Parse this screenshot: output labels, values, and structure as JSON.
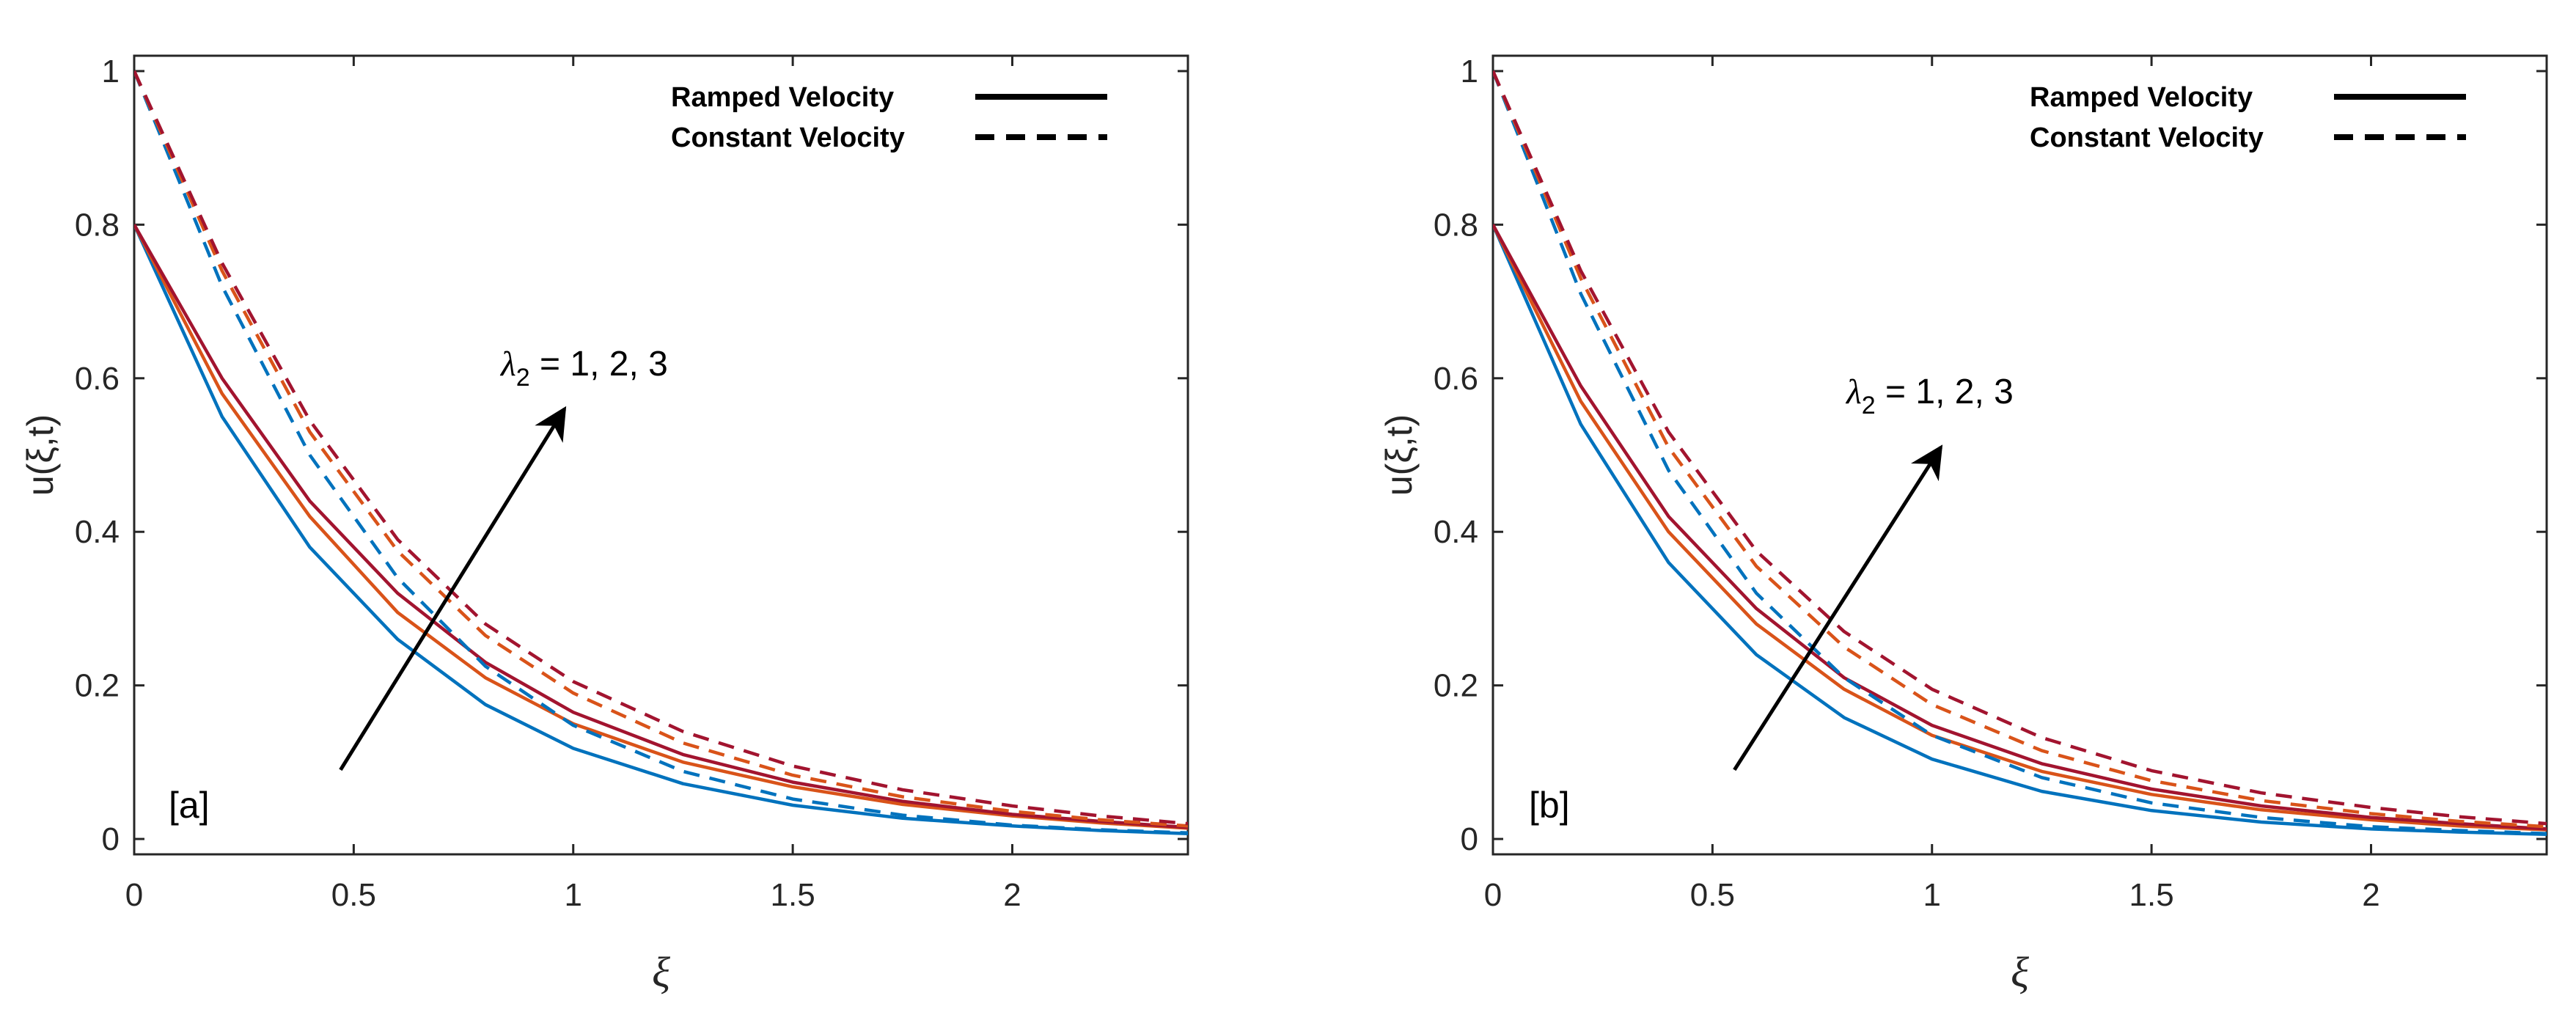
{
  "chart_data": [
    {
      "type": "line",
      "panel_label": "[a]",
      "xlabel": "ξ",
      "ylabel": "u(ξ,t)",
      "xlim": [
        0,
        2.4
      ],
      "ylim": [
        -0.02,
        1.02
      ],
      "xticks": [
        0,
        0.5,
        1,
        1.5,
        2
      ],
      "xtick_labels": [
        "0",
        "0.5",
        "1",
        "1.5",
        "2"
      ],
      "yticks": [
        0,
        0.2,
        0.4,
        0.6,
        0.8,
        1
      ],
      "ytick_labels": [
        "0",
        "0.2",
        "0.4",
        "0.6",
        "0.8",
        "1"
      ],
      "legend": [
        {
          "label": "Ramped Velocity",
          "style": "solid"
        },
        {
          "label": "Constant Velocity",
          "style": "dashed"
        }
      ],
      "annotation": {
        "lambda": "λ",
        "sub": "2",
        "text": " = 1, 2, 3",
        "from": [
          0.47,
          0.09
        ],
        "to": [
          0.98,
          0.56
        ]
      },
      "series": [
        {
          "name": "Ramped, λ2 = 1",
          "style": "solid",
          "color": "#0072BD",
          "x": [
            0,
            0.2,
            0.4,
            0.6,
            0.8,
            1.0,
            1.25,
            1.5,
            1.75,
            2.0,
            2.2,
            2.4
          ],
          "y": [
            0.8,
            0.55,
            0.38,
            0.26,
            0.175,
            0.118,
            0.072,
            0.044,
            0.027,
            0.017,
            0.011,
            0.007
          ]
        },
        {
          "name": "Ramped, λ2 = 2",
          "style": "solid",
          "color": "#D95319",
          "x": [
            0,
            0.2,
            0.4,
            0.6,
            0.8,
            1.0,
            1.25,
            1.5,
            1.75,
            2.0,
            2.2,
            2.4
          ],
          "y": [
            0.8,
            0.58,
            0.42,
            0.295,
            0.21,
            0.15,
            0.1,
            0.068,
            0.045,
            0.03,
            0.021,
            0.014
          ]
        },
        {
          "name": "Ramped, λ2 = 3",
          "style": "solid",
          "color": "#A2142F",
          "x": [
            0,
            0.2,
            0.4,
            0.6,
            0.8,
            1.0,
            1.25,
            1.5,
            1.75,
            2.0,
            2.2,
            2.4
          ],
          "y": [
            0.8,
            0.6,
            0.44,
            0.32,
            0.23,
            0.165,
            0.11,
            0.074,
            0.049,
            0.032,
            0.023,
            0.015
          ]
        },
        {
          "name": "Constant, λ2 = 1",
          "style": "dashed",
          "color": "#0072BD",
          "x": [
            0,
            0.2,
            0.4,
            0.6,
            0.8,
            1.0,
            1.25,
            1.5,
            1.75,
            2.0,
            2.2,
            2.4
          ],
          "y": [
            1.0,
            0.72,
            0.5,
            0.34,
            0.225,
            0.148,
            0.088,
            0.052,
            0.031,
            0.018,
            0.012,
            0.008
          ]
        },
        {
          "name": "Constant, λ2 = 2",
          "style": "dashed",
          "color": "#D95319",
          "x": [
            0,
            0.2,
            0.4,
            0.6,
            0.8,
            1.0,
            1.25,
            1.5,
            1.75,
            2.0,
            2.2,
            2.4
          ],
          "y": [
            1.0,
            0.74,
            0.53,
            0.375,
            0.265,
            0.19,
            0.125,
            0.083,
            0.055,
            0.036,
            0.025,
            0.017
          ]
        },
        {
          "name": "Constant, λ2 = 3",
          "style": "dashed",
          "color": "#A2142F",
          "x": [
            0,
            0.2,
            0.4,
            0.6,
            0.8,
            1.0,
            1.25,
            1.5,
            1.75,
            2.0,
            2.2,
            2.4
          ],
          "y": [
            1.0,
            0.75,
            0.545,
            0.39,
            0.28,
            0.205,
            0.14,
            0.095,
            0.064,
            0.043,
            0.03,
            0.02
          ]
        }
      ]
    },
    {
      "type": "line",
      "panel_label": "[b]",
      "xlabel": "ξ",
      "ylabel": "u(ξ,t)",
      "xlim": [
        0,
        2.4
      ],
      "ylim": [
        -0.02,
        1.02
      ],
      "xticks": [
        0,
        0.5,
        1,
        1.5,
        2
      ],
      "xtick_labels": [
        "0",
        "0.5",
        "1",
        "1.5",
        "2"
      ],
      "yticks": [
        0,
        0.2,
        0.4,
        0.6,
        0.8,
        1
      ],
      "ytick_labels": [
        "0",
        "0.2",
        "0.4",
        "0.6",
        "0.8",
        "1"
      ],
      "legend": [
        {
          "label": "Ramped Velocity",
          "style": "solid"
        },
        {
          "label": "Constant Velocity",
          "style": "dashed"
        }
      ],
      "annotation": {
        "lambda": "λ",
        "sub": "2",
        "text": " = 1, 2, 3",
        "from": [
          0.55,
          0.09
        ],
        "to": [
          1.02,
          0.51
        ]
      },
      "series": [
        {
          "name": "Ramped, λ2 = 1",
          "style": "solid",
          "color": "#0072BD",
          "x": [
            0,
            0.2,
            0.4,
            0.6,
            0.8,
            1.0,
            1.25,
            1.5,
            1.75,
            2.0,
            2.2,
            2.4
          ],
          "y": [
            0.8,
            0.54,
            0.36,
            0.24,
            0.158,
            0.104,
            0.062,
            0.037,
            0.022,
            0.013,
            0.009,
            0.006
          ]
        },
        {
          "name": "Ramped, λ2 = 2",
          "style": "solid",
          "color": "#D95319",
          "x": [
            0,
            0.2,
            0.4,
            0.6,
            0.8,
            1.0,
            1.25,
            1.5,
            1.75,
            2.0,
            2.2,
            2.4
          ],
          "y": [
            0.8,
            0.57,
            0.4,
            0.28,
            0.195,
            0.135,
            0.088,
            0.058,
            0.038,
            0.025,
            0.017,
            0.012
          ]
        },
        {
          "name": "Ramped, λ2 = 3",
          "style": "solid",
          "color": "#A2142F",
          "x": [
            0,
            0.2,
            0.4,
            0.6,
            0.8,
            1.0,
            1.25,
            1.5,
            1.75,
            2.0,
            2.2,
            2.4
          ],
          "y": [
            0.8,
            0.59,
            0.42,
            0.3,
            0.21,
            0.148,
            0.098,
            0.065,
            0.043,
            0.028,
            0.02,
            0.013
          ]
        },
        {
          "name": "Constant, λ2 = 1",
          "style": "dashed",
          "color": "#0072BD",
          "x": [
            0,
            0.2,
            0.4,
            0.6,
            0.8,
            1.0,
            1.25,
            1.5,
            1.75,
            2.0,
            2.2,
            2.4
          ],
          "y": [
            1.0,
            0.71,
            0.48,
            0.32,
            0.21,
            0.135,
            0.08,
            0.047,
            0.028,
            0.016,
            0.011,
            0.007
          ]
        },
        {
          "name": "Constant, λ2 = 2",
          "style": "dashed",
          "color": "#D95319",
          "x": [
            0,
            0.2,
            0.4,
            0.6,
            0.8,
            1.0,
            1.25,
            1.5,
            1.75,
            2.0,
            2.2,
            2.4
          ],
          "y": [
            1.0,
            0.73,
            0.51,
            0.355,
            0.25,
            0.175,
            0.115,
            0.076,
            0.05,
            0.033,
            0.023,
            0.016
          ]
        },
        {
          "name": "Constant, λ2 = 3",
          "style": "dashed",
          "color": "#A2142F",
          "x": [
            0,
            0.2,
            0.4,
            0.6,
            0.8,
            1.0,
            1.25,
            1.5,
            1.75,
            2.0,
            2.2,
            2.4
          ],
          "y": [
            1.0,
            0.74,
            0.53,
            0.375,
            0.27,
            0.195,
            0.132,
            0.089,
            0.06,
            0.041,
            0.029,
            0.02
          ]
        }
      ]
    }
  ]
}
